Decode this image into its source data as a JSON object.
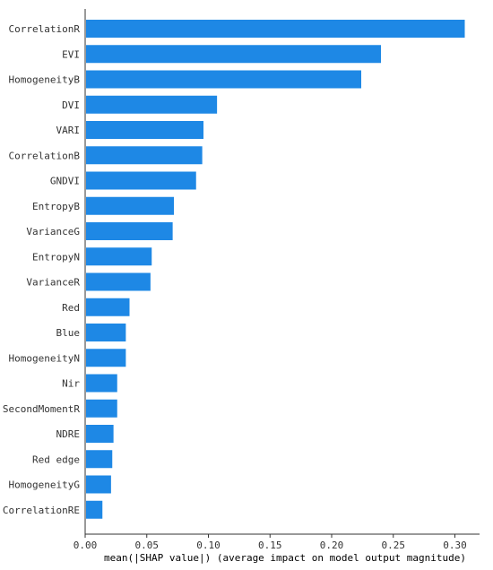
{
  "chart_data": {
    "type": "bar",
    "orientation": "horizontal",
    "categories": [
      "CorrelationR",
      "EVI",
      "HomogeneityB",
      "DVI",
      "VARI",
      "CorrelationB",
      "GNDVI",
      "EntropyB",
      "VarianceG",
      "EntropyN",
      "VarianceR",
      "Red",
      "Blue",
      "HomogeneityN",
      "Nir",
      "SecondMomentR",
      "NDRE",
      "Red edge",
      "HomogeneityG",
      "CorrelationRE"
    ],
    "values": [
      0.308,
      0.24,
      0.224,
      0.107,
      0.096,
      0.095,
      0.09,
      0.072,
      0.071,
      0.054,
      0.053,
      0.036,
      0.033,
      0.033,
      0.026,
      0.026,
      0.023,
      0.022,
      0.021,
      0.014
    ],
    "xticks": [
      "0.00",
      "0.05",
      "0.10",
      "0.15",
      "0.20",
      "0.25",
      "0.30"
    ],
    "xlim": [
      0,
      0.32
    ],
    "xlabel": "mean(|SHAP value|) (average impact on model output magnitude)",
    "title": "",
    "grid": false,
    "bar_color": "#1E88E5",
    "axis_color": "#333333"
  }
}
